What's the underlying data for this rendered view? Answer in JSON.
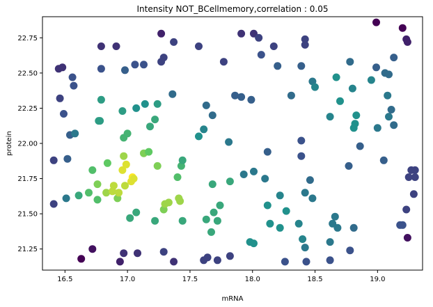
{
  "chart_data": {
    "type": "scatter",
    "title": "Intensity NOT_BCellmemory,correlation : 0.05",
    "xlabel": "mRNA",
    "ylabel": "protein",
    "xlim": [
      16.32,
      19.36
    ],
    "ylim": [
      21.1,
      22.9
    ],
    "xticks": [
      16.5,
      17.0,
      17.5,
      18.0,
      18.5,
      19.0
    ],
    "xtick_labels": [
      "16.5",
      "17.0",
      "17.5",
      "18.0",
      "18.5",
      "19.0"
    ],
    "yticks": [
      21.25,
      21.5,
      21.75,
      22.0,
      22.25,
      22.5,
      22.75
    ],
    "ytick_labels": [
      "21.25",
      "21.50",
      "21.75",
      "22.00",
      "22.25",
      "22.50",
      "22.75"
    ],
    "colormap": "viridis",
    "points": [
      {
        "x": 16.63,
        "y": 21.18,
        "c": 0.0
      },
      {
        "x": 16.72,
        "y": 21.25,
        "c": 0.05
      },
      {
        "x": 16.94,
        "y": 21.16,
        "c": 0.1
      },
      {
        "x": 16.97,
        "y": 21.22,
        "c": 0.15
      },
      {
        "x": 17.08,
        "y": 21.22,
        "c": 0.15
      },
      {
        "x": 17.29,
        "y": 21.23,
        "c": 0.2
      },
      {
        "x": 17.37,
        "y": 21.16,
        "c": 0.15
      },
      {
        "x": 17.61,
        "y": 21.17,
        "c": 0.2
      },
      {
        "x": 17.64,
        "y": 21.19,
        "c": 0.2
      },
      {
        "x": 17.72,
        "y": 21.17,
        "c": 0.2
      },
      {
        "x": 17.82,
        "y": 21.2,
        "c": 0.2
      },
      {
        "x": 18.26,
        "y": 21.16,
        "c": 0.25
      },
      {
        "x": 18.43,
        "y": 21.16,
        "c": 0.25
      },
      {
        "x": 18.62,
        "y": 21.17,
        "c": 0.25
      },
      {
        "x": 18.78,
        "y": 21.24,
        "c": 0.25
      },
      {
        "x": 16.41,
        "y": 21.57,
        "c": 0.2
      },
      {
        "x": 16.41,
        "y": 21.88,
        "c": 0.2
      },
      {
        "x": 16.52,
        "y": 21.89,
        "c": 0.3
      },
      {
        "x": 16.51,
        "y": 21.61,
        "c": 0.4
      },
      {
        "x": 16.61,
        "y": 21.63,
        "c": 0.6
      },
      {
        "x": 16.69,
        "y": 21.65,
        "c": 0.7
      },
      {
        "x": 16.72,
        "y": 21.81,
        "c": 0.7
      },
      {
        "x": 16.76,
        "y": 21.6,
        "c": 0.7
      },
      {
        "x": 16.76,
        "y": 21.71,
        "c": 0.8
      },
      {
        "x": 16.83,
        "y": 21.65,
        "c": 0.85
      },
      {
        "x": 16.84,
        "y": 21.86,
        "c": 0.75
      },
      {
        "x": 16.88,
        "y": 21.66,
        "c": 0.9
      },
      {
        "x": 16.89,
        "y": 21.7,
        "c": 0.9
      },
      {
        "x": 16.92,
        "y": 21.61,
        "c": 0.8
      },
      {
        "x": 16.93,
        "y": 21.65,
        "c": 0.9
      },
      {
        "x": 16.96,
        "y": 21.81,
        "c": 0.95
      },
      {
        "x": 16.97,
        "y": 21.91,
        "c": 0.85
      },
      {
        "x": 16.98,
        "y": 21.7,
        "c": 0.9
      },
      {
        "x": 16.99,
        "y": 21.85,
        "c": 0.95
      },
      {
        "x": 17.03,
        "y": 21.73,
        "c": 0.95
      },
      {
        "x": 17.04,
        "y": 21.76,
        "c": 1.0
      },
      {
        "x": 17.05,
        "y": 21.75,
        "c": 0.95
      },
      {
        "x": 17.02,
        "y": 21.47,
        "c": 0.6
      },
      {
        "x": 17.07,
        "y": 21.51,
        "c": 0.6
      },
      {
        "x": 17.13,
        "y": 21.93,
        "c": 0.8
      },
      {
        "x": 17.17,
        "y": 21.94,
        "c": 0.75
      },
      {
        "x": 17.22,
        "y": 21.45,
        "c": 0.6
      },
      {
        "x": 17.24,
        "y": 21.84,
        "c": 0.8
      },
      {
        "x": 17.29,
        "y": 21.53,
        "c": 0.8
      },
      {
        "x": 17.3,
        "y": 21.57,
        "c": 0.85
      },
      {
        "x": 17.33,
        "y": 21.58,
        "c": 0.85
      },
      {
        "x": 17.41,
        "y": 21.61,
        "c": 0.85
      },
      {
        "x": 17.42,
        "y": 21.59,
        "c": 0.85
      },
      {
        "x": 17.43,
        "y": 21.84,
        "c": 0.65
      },
      {
        "x": 17.44,
        "y": 21.88,
        "c": 0.6
      },
      {
        "x": 17.4,
        "y": 21.76,
        "c": 0.7
      },
      {
        "x": 17.44,
        "y": 21.45,
        "c": 0.6
      },
      {
        "x": 17.63,
        "y": 21.46,
        "c": 0.6
      },
      {
        "x": 17.67,
        "y": 21.37,
        "c": 0.6
      },
      {
        "x": 17.68,
        "y": 21.71,
        "c": 0.6
      },
      {
        "x": 17.69,
        "y": 21.51,
        "c": 0.6
      },
      {
        "x": 17.72,
        "y": 21.45,
        "c": 0.6
      },
      {
        "x": 17.74,
        "y": 21.56,
        "c": 0.6
      },
      {
        "x": 17.82,
        "y": 21.73,
        "c": 0.6
      },
      {
        "x": 16.45,
        "y": 22.53,
        "c": 0.15
      },
      {
        "x": 16.48,
        "y": 22.54,
        "c": 0.15
      },
      {
        "x": 16.46,
        "y": 22.32,
        "c": 0.2
      },
      {
        "x": 16.49,
        "y": 22.21,
        "c": 0.25
      },
      {
        "x": 16.54,
        "y": 22.06,
        "c": 0.3
      },
      {
        "x": 16.56,
        "y": 22.47,
        "c": 0.25
      },
      {
        "x": 16.57,
        "y": 22.41,
        "c": 0.25
      },
      {
        "x": 16.58,
        "y": 22.07,
        "c": 0.4
      },
      {
        "x": 16.77,
        "y": 22.16,
        "c": 0.55
      },
      {
        "x": 16.78,
        "y": 22.16,
        "c": 0.55
      },
      {
        "x": 16.79,
        "y": 22.31,
        "c": 0.55
      },
      {
        "x": 16.79,
        "y": 22.69,
        "c": 0.15
      },
      {
        "x": 16.79,
        "y": 22.53,
        "c": 0.25
      },
      {
        "x": 16.91,
        "y": 22.69,
        "c": 0.15
      },
      {
        "x": 16.96,
        "y": 22.23,
        "c": 0.55
      },
      {
        "x": 16.97,
        "y": 22.04,
        "c": 0.65
      },
      {
        "x": 16.98,
        "y": 22.52,
        "c": 0.3
      },
      {
        "x": 17.0,
        "y": 22.07,
        "c": 0.65
      },
      {
        "x": 17.06,
        "y": 22.56,
        "c": 0.25
      },
      {
        "x": 17.07,
        "y": 22.25,
        "c": 0.5
      },
      {
        "x": 17.14,
        "y": 22.28,
        "c": 0.5
      },
      {
        "x": 17.13,
        "y": 22.56,
        "c": 0.25
      },
      {
        "x": 17.18,
        "y": 22.12,
        "c": 0.6
      },
      {
        "x": 17.22,
        "y": 22.17,
        "c": 0.6
      },
      {
        "x": 17.24,
        "y": 22.28,
        "c": 0.55
      },
      {
        "x": 17.27,
        "y": 22.78,
        "c": 0.1
      },
      {
        "x": 17.27,
        "y": 22.58,
        "c": 0.2
      },
      {
        "x": 17.29,
        "y": 22.61,
        "c": 0.2
      },
      {
        "x": 17.36,
        "y": 22.35,
        "c": 0.35
      },
      {
        "x": 17.37,
        "y": 22.72,
        "c": 0.2
      },
      {
        "x": 17.57,
        "y": 22.69,
        "c": 0.2
      },
      {
        "x": 17.57,
        "y": 22.05,
        "c": 0.5
      },
      {
        "x": 17.61,
        "y": 22.1,
        "c": 0.45
      },
      {
        "x": 17.63,
        "y": 22.27,
        "c": 0.35
      },
      {
        "x": 17.68,
        "y": 22.2,
        "c": 0.35
      },
      {
        "x": 17.77,
        "y": 22.58,
        "c": 0.2
      },
      {
        "x": 17.81,
        "y": 22.01,
        "c": 0.4
      },
      {
        "x": 17.86,
        "y": 22.34,
        "c": 0.3
      },
      {
        "x": 17.91,
        "y": 22.33,
        "c": 0.3
      },
      {
        "x": 17.91,
        "y": 22.78,
        "c": 0.15
      },
      {
        "x": 17.99,
        "y": 22.31,
        "c": 0.3
      },
      {
        "x": 18.01,
        "y": 22.78,
        "c": 0.15
      },
      {
        "x": 18.05,
        "y": 22.75,
        "c": 0.2
      },
      {
        "x": 18.07,
        "y": 22.63,
        "c": 0.25
      },
      {
        "x": 18.17,
        "y": 22.69,
        "c": 0.2
      },
      {
        "x": 18.2,
        "y": 22.55,
        "c": 0.3
      },
      {
        "x": 18.31,
        "y": 22.34,
        "c": 0.35
      },
      {
        "x": 18.39,
        "y": 22.55,
        "c": 0.3
      },
      {
        "x": 18.42,
        "y": 22.7,
        "c": 0.2
      },
      {
        "x": 18.42,
        "y": 22.74,
        "c": 0.2
      },
      {
        "x": 18.48,
        "y": 22.44,
        "c": 0.4
      },
      {
        "x": 18.5,
        "y": 22.4,
        "c": 0.45
      },
      {
        "x": 18.62,
        "y": 22.19,
        "c": 0.45
      },
      {
        "x": 18.67,
        "y": 22.47,
        "c": 0.5
      },
      {
        "x": 18.7,
        "y": 22.3,
        "c": 0.5
      },
      {
        "x": 18.78,
        "y": 22.58,
        "c": 0.35
      },
      {
        "x": 18.8,
        "y": 22.39,
        "c": 0.45
      },
      {
        "x": 18.81,
        "y": 22.11,
        "c": 0.5
      },
      {
        "x": 18.82,
        "y": 22.14,
        "c": 0.5
      },
      {
        "x": 18.83,
        "y": 22.2,
        "c": 0.5
      },
      {
        "x": 18.95,
        "y": 22.45,
        "c": 0.45
      },
      {
        "x": 18.99,
        "y": 22.86,
        "c": 0.0
      },
      {
        "x": 18.99,
        "y": 22.54,
        "c": 0.3
      },
      {
        "x": 19.0,
        "y": 22.11,
        "c": 0.4
      },
      {
        "x": 19.06,
        "y": 22.5,
        "c": 0.35
      },
      {
        "x": 19.09,
        "y": 22.49,
        "c": 0.35
      },
      {
        "x": 19.08,
        "y": 22.34,
        "c": 0.4
      },
      {
        "x": 19.09,
        "y": 22.19,
        "c": 0.4
      },
      {
        "x": 19.11,
        "y": 22.24,
        "c": 0.35
      },
      {
        "x": 19.13,
        "y": 22.61,
        "c": 0.3
      },
      {
        "x": 19.13,
        "y": 22.13,
        "c": 0.35
      },
      {
        "x": 19.2,
        "y": 22.82,
        "c": 0.0
      },
      {
        "x": 19.23,
        "y": 22.74,
        "c": 0.1
      },
      {
        "x": 19.24,
        "y": 22.72,
        "c": 0.1
      },
      {
        "x": 18.12,
        "y": 21.94,
        "c": 0.3
      },
      {
        "x": 18.39,
        "y": 21.91,
        "c": 0.25
      },
      {
        "x": 18.39,
        "y": 22.02,
        "c": 0.25
      },
      {
        "x": 18.01,
        "y": 21.8,
        "c": 0.4
      },
      {
        "x": 17.93,
        "y": 21.78,
        "c": 0.4
      },
      {
        "x": 18.1,
        "y": 21.75,
        "c": 0.4
      },
      {
        "x": 18.12,
        "y": 21.56,
        "c": 0.5
      },
      {
        "x": 18.14,
        "y": 21.43,
        "c": 0.5
      },
      {
        "x": 18.22,
        "y": 21.63,
        "c": 0.45
      },
      {
        "x": 18.22,
        "y": 21.4,
        "c": 0.5
      },
      {
        "x": 18.27,
        "y": 21.52,
        "c": 0.5
      },
      {
        "x": 18.37,
        "y": 21.43,
        "c": 0.45
      },
      {
        "x": 18.4,
        "y": 21.32,
        "c": 0.45
      },
      {
        "x": 18.42,
        "y": 21.65,
        "c": 0.4
      },
      {
        "x": 18.42,
        "y": 21.26,
        "c": 0.4
      },
      {
        "x": 18.46,
        "y": 21.74,
        "c": 0.35
      },
      {
        "x": 18.48,
        "y": 21.61,
        "c": 0.4
      },
      {
        "x": 17.98,
        "y": 21.3,
        "c": 0.5
      },
      {
        "x": 18.01,
        "y": 21.29,
        "c": 0.5
      },
      {
        "x": 18.62,
        "y": 21.3,
        "c": 0.4
      },
      {
        "x": 18.64,
        "y": 21.43,
        "c": 0.4
      },
      {
        "x": 18.66,
        "y": 21.48,
        "c": 0.4
      },
      {
        "x": 18.68,
        "y": 21.4,
        "c": 0.4
      },
      {
        "x": 18.77,
        "y": 21.84,
        "c": 0.3
      },
      {
        "x": 18.81,
        "y": 21.4,
        "c": 0.35
      },
      {
        "x": 18.86,
        "y": 21.98,
        "c": 0.3
      },
      {
        "x": 19.05,
        "y": 21.88,
        "c": 0.3
      },
      {
        "x": 19.18,
        "y": 21.42,
        "c": 0.25
      },
      {
        "x": 19.2,
        "y": 21.42,
        "c": 0.25
      },
      {
        "x": 19.23,
        "y": 21.53,
        "c": 0.2
      },
      {
        "x": 19.24,
        "y": 21.33,
        "c": 0.05
      },
      {
        "x": 19.25,
        "y": 21.76,
        "c": 0.2
      },
      {
        "x": 19.27,
        "y": 21.81,
        "c": 0.2
      },
      {
        "x": 19.29,
        "y": 21.64,
        "c": 0.2
      },
      {
        "x": 19.3,
        "y": 21.76,
        "c": 0.2
      },
      {
        "x": 19.3,
        "y": 21.81,
        "c": 0.2
      }
    ]
  }
}
